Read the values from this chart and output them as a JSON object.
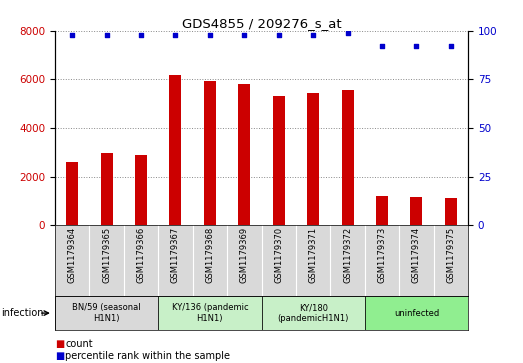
{
  "title": "GDS4855 / 209276_s_at",
  "samples": [
    "GSM1179364",
    "GSM1179365",
    "GSM1179366",
    "GSM1179367",
    "GSM1179368",
    "GSM1179369",
    "GSM1179370",
    "GSM1179371",
    "GSM1179372",
    "GSM1179373",
    "GSM1179374",
    "GSM1179375"
  ],
  "counts": [
    2600,
    2950,
    2900,
    6200,
    5950,
    5800,
    5300,
    5450,
    5550,
    1200,
    1150,
    1100
  ],
  "percentiles": [
    98,
    98,
    98,
    98,
    98,
    98,
    98,
    98,
    99,
    92,
    92,
    92
  ],
  "bar_color": "#cc0000",
  "dot_color": "#0000cc",
  "ylim_left": [
    0,
    8000
  ],
  "ylim_right": [
    0,
    100
  ],
  "yticks_left": [
    0,
    2000,
    4000,
    6000,
    8000
  ],
  "yticks_right": [
    0,
    25,
    50,
    75,
    100
  ],
  "groups": [
    {
      "label": "BN/59 (seasonal\nH1N1)",
      "start": 0,
      "end": 3,
      "color": "#d9d9d9"
    },
    {
      "label": "KY/136 (pandemic\nH1N1)",
      "start": 3,
      "end": 6,
      "color": "#c8f0c8"
    },
    {
      "label": "KY/180\n(pandemicH1N1)",
      "start": 6,
      "end": 9,
      "color": "#c8f0c8"
    },
    {
      "label": "uninfected",
      "start": 9,
      "end": 12,
      "color": "#90ee90"
    }
  ],
  "infection_label": "infection",
  "legend_count_label": "count",
  "legend_percentile_label": "percentile rank within the sample",
  "background_color": "#ffffff",
  "grid_color": "#888888"
}
